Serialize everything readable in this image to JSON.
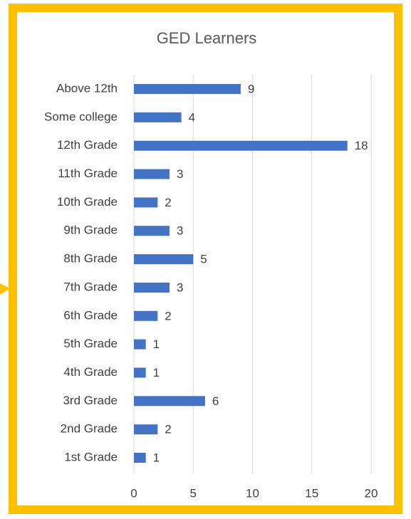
{
  "chart_data": {
    "type": "barh",
    "title": "GED Learners",
    "categories": [
      "Above 12th",
      "Some college",
      "12th Grade",
      "11th Grade",
      "10th Grade",
      "9th Grade",
      "8th Grade",
      "7th Grade",
      "6th Grade",
      "5th Grade",
      "4th Grade",
      "3rd Grade",
      "2nd Grade",
      "1st Grade"
    ],
    "values": [
      9,
      4,
      18,
      3,
      2,
      3,
      5,
      3,
      2,
      1,
      1,
      6,
      2,
      1
    ],
    "color": "#4472c4",
    "xlim": [
      0,
      20
    ],
    "xticks": [
      0,
      5,
      10,
      15,
      20
    ],
    "grid": true
  }
}
